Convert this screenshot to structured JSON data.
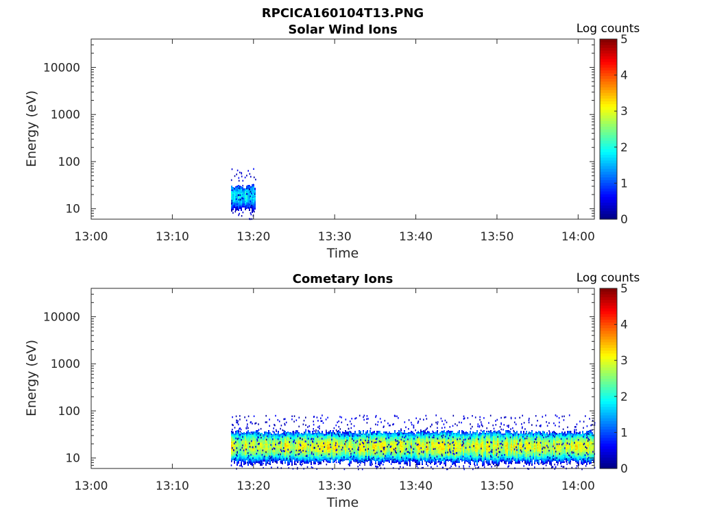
{
  "figure": {
    "main_title": "RPCICA160104T13.PNG"
  },
  "chart_data": [
    {
      "type": "heatmap",
      "title": "Solar Wind Ions",
      "xlabel": "Time",
      "ylabel": "Energy (eV)",
      "x_ticks": [
        "13:00",
        "13:10",
        "13:20",
        "13:30",
        "13:40",
        "13:50",
        "14:00"
      ],
      "y_ticks": [
        "10",
        "100",
        "1000",
        "10000"
      ],
      "y_scale": "log",
      "xlim_minutes": [
        0,
        62
      ],
      "ylim": [
        6,
        40000
      ],
      "colorbar": {
        "label": "Log counts",
        "ticks": [
          "0",
          "1",
          "2",
          "3",
          "4",
          "5"
        ],
        "range": [
          0,
          5
        ],
        "colormap": "jet"
      },
      "bands": [
        {
          "t_start_min": 17.2,
          "t_end_min": 20.2,
          "e_low": 9,
          "e_high": 30,
          "e_peak": 19,
          "peak_log_counts": 1.8
        }
      ],
      "scattered_low_counts": {
        "t_start_min": 17.2,
        "t_end_min": 20.2,
        "e_low": 6,
        "e_high": 80
      }
    },
    {
      "type": "heatmap",
      "title": "Cometary Ions",
      "xlabel": "Time",
      "ylabel": "Energy (eV)",
      "x_ticks": [
        "13:00",
        "13:10",
        "13:20",
        "13:30",
        "13:40",
        "13:50",
        "14:00"
      ],
      "y_ticks": [
        "10",
        "100",
        "1000",
        "10000"
      ],
      "y_scale": "log",
      "xlim_minutes": [
        0,
        62
      ],
      "ylim": [
        6,
        40000
      ],
      "colorbar": {
        "label": "Log counts",
        "ticks": [
          "0",
          "1",
          "2",
          "3",
          "4",
          "5"
        ],
        "range": [
          0,
          5
        ],
        "colormap": "jet"
      },
      "bands": [
        {
          "t_start_min": 17.2,
          "t_end_min": 62,
          "e_low": 8,
          "e_high": 36,
          "e_peak": 18,
          "peak_log_counts": 2.9
        }
      ],
      "scattered_low_counts": {
        "t_start_min": 17.2,
        "t_end_min": 62,
        "e_low": 6,
        "e_high": 85
      }
    }
  ]
}
